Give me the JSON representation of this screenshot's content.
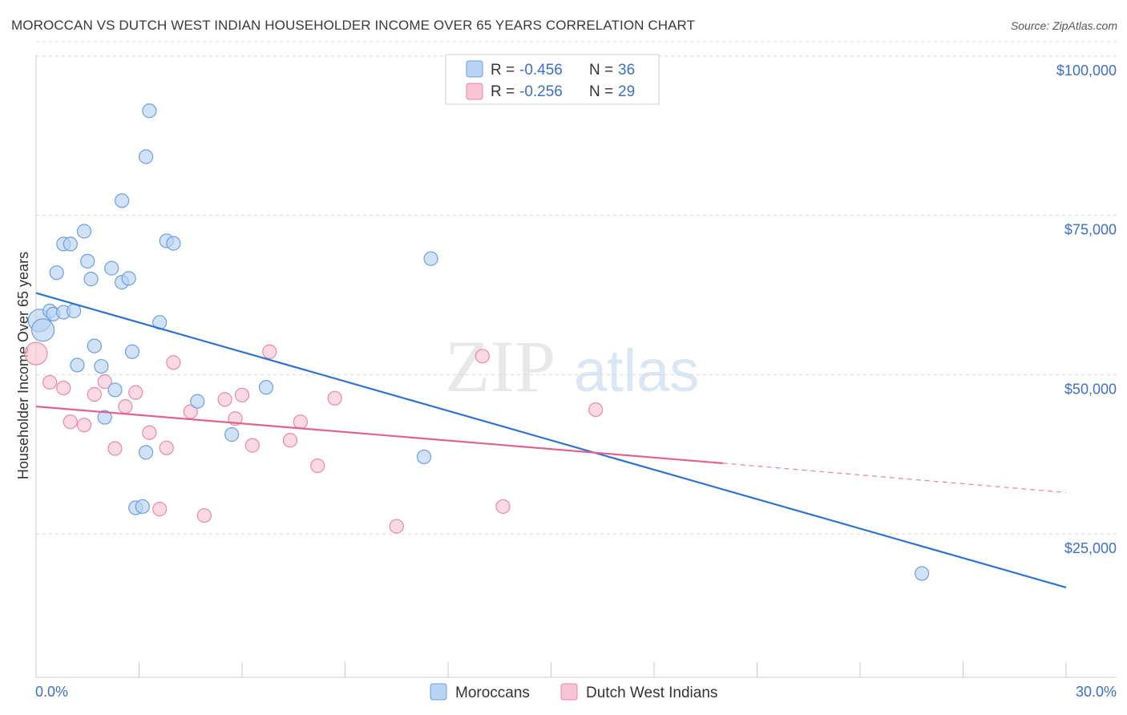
{
  "title": "MOROCCAN VS DUTCH WEST INDIAN HOUSEHOLDER INCOME OVER 65 YEARS CORRELATION CHART",
  "source": "Source: ZipAtlas.com",
  "watermark": {
    "zip": "ZIP",
    "atlas": "atlas"
  },
  "colors": {
    "blue_fill": "#b8d3f3",
    "blue_stroke": "#6d9fdc",
    "blue_line": "#2f72cf",
    "pink_fill": "#f7c4d4",
    "pink_stroke": "#e68aa8",
    "pink_line": "#e0628e",
    "grid": "#d9d9d9",
    "axis_text": "#3d6fc4"
  },
  "legend": {
    "rows": [
      {
        "r_label": "R = ",
        "r_value": "-0.456",
        "n_label": "N = ",
        "n_value": "36"
      },
      {
        "r_label": "R = ",
        "r_value": "-0.256",
        "n_label": "N = ",
        "n_value": "29"
      }
    ]
  },
  "bottom_legend": [
    "Moroccans",
    "Dutch West Indians"
  ],
  "chart_data": {
    "type": "scatter",
    "title": "MOROCCAN VS DUTCH WEST INDIAN HOUSEHOLDER INCOME OVER 65 YEARS CORRELATION CHART",
    "xlabel": "",
    "ylabel": "Householder Income Over 65 years",
    "xlim": [
      0,
      30
    ],
    "ylim": [
      2500,
      102500
    ],
    "x_tick_labels": [
      "0.0%",
      "30.0%"
    ],
    "y_ticks": [
      25000,
      50000,
      75000,
      100000
    ],
    "y_tick_labels": [
      "$25,000",
      "$50,000",
      "$75,000",
      "$100,000"
    ],
    "grid": true,
    "series": [
      {
        "name": "Moroccans",
        "R": -0.456,
        "N": 36,
        "points": [
          [
            0.1,
            58500
          ],
          [
            0.2,
            57000
          ],
          [
            0.4,
            60000
          ],
          [
            0.5,
            59500
          ],
          [
            0.6,
            66000
          ],
          [
            0.8,
            59800
          ],
          [
            0.8,
            70500
          ],
          [
            1.0,
            70500
          ],
          [
            1.1,
            60000
          ],
          [
            1.2,
            51500
          ],
          [
            1.4,
            72500
          ],
          [
            1.5,
            67800
          ],
          [
            1.6,
            65000
          ],
          [
            1.7,
            54500
          ],
          [
            1.9,
            51300
          ],
          [
            2.0,
            43300
          ],
          [
            2.2,
            66700
          ],
          [
            2.3,
            47600
          ],
          [
            2.5,
            77300
          ],
          [
            2.5,
            64500
          ],
          [
            2.7,
            65100
          ],
          [
            2.8,
            53600
          ],
          [
            2.9,
            29100
          ],
          [
            3.1,
            29300
          ],
          [
            3.2,
            37800
          ],
          [
            3.2,
            84200
          ],
          [
            3.3,
            91400
          ],
          [
            3.6,
            58200
          ],
          [
            3.8,
            71000
          ],
          [
            4.0,
            70600
          ],
          [
            4.7,
            45800
          ],
          [
            5.7,
            40600
          ],
          [
            6.7,
            48000
          ],
          [
            11.3,
            37100
          ],
          [
            11.5,
            68200
          ],
          [
            25.8,
            18800
          ]
        ],
        "trend": {
          "x": [
            0,
            30
          ],
          "y": [
            62800,
            16600
          ],
          "style": "solid"
        }
      },
      {
        "name": "Dutch West Indians",
        "R": -0.256,
        "N": 29,
        "points": [
          [
            0.0,
            53300
          ],
          [
            0.4,
            48800
          ],
          [
            0.8,
            47900
          ],
          [
            1.0,
            42600
          ],
          [
            1.4,
            42100
          ],
          [
            1.7,
            46900
          ],
          [
            2.0,
            48900
          ],
          [
            2.3,
            38400
          ],
          [
            2.6,
            45000
          ],
          [
            2.9,
            47200
          ],
          [
            3.3,
            40900
          ],
          [
            3.6,
            28900
          ],
          [
            3.8,
            38500
          ],
          [
            4.0,
            51900
          ],
          [
            4.5,
            44200
          ],
          [
            4.9,
            27900
          ],
          [
            5.5,
            46100
          ],
          [
            5.8,
            43100
          ],
          [
            6.0,
            46800
          ],
          [
            6.3,
            38900
          ],
          [
            6.8,
            53600
          ],
          [
            7.4,
            39700
          ],
          [
            7.7,
            42600
          ],
          [
            8.2,
            35700
          ],
          [
            8.7,
            46300
          ],
          [
            10.5,
            26200
          ],
          [
            13.0,
            52900
          ],
          [
            13.6,
            29300
          ],
          [
            16.3,
            44500
          ]
        ],
        "trend": {
          "x": [
            0,
            20
          ],
          "y": [
            45000,
            36100
          ],
          "style": "solid"
        },
        "trend_extension": {
          "x": [
            20,
            30
          ],
          "y": [
            36100,
            31500
          ],
          "style": "dashed"
        }
      }
    ]
  }
}
